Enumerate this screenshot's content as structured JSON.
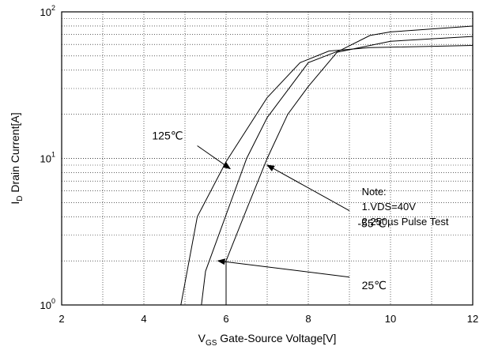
{
  "chart_data": {
    "type": "line",
    "title": "",
    "xlabel": {
      "main": "V",
      "sub": "GS",
      "rest": " Gate-Source Voltage[V]"
    },
    "ylabel": {
      "main": "I",
      "sub": "D",
      "rest": " Drain Current[A]"
    },
    "xlim": [
      2,
      12
    ],
    "ylim": [
      1,
      100
    ],
    "yscale": "log",
    "grid": "dotted",
    "x_ticks": [
      2,
      4,
      6,
      8,
      10,
      12
    ],
    "y_ticks": [
      {
        "value": 1,
        "base": "10",
        "exp": "0"
      },
      {
        "value": 10,
        "base": "10",
        "exp": "1"
      },
      {
        "value": 100,
        "base": "10",
        "exp": "2"
      }
    ],
    "series": [
      {
        "name": "125℃",
        "points": [
          [
            4.9,
            1
          ],
          [
            5.3,
            4
          ],
          [
            6,
            9.5
          ],
          [
            7,
            26
          ],
          [
            7.8,
            45
          ],
          [
            8.5,
            54
          ],
          [
            9.5,
            57
          ],
          [
            12,
            59
          ]
        ]
      },
      {
        "name": "-55℃",
        "points": [
          [
            5.4,
            1
          ],
          [
            5.5,
            1.7
          ],
          [
            6.5,
            10
          ],
          [
            7,
            19
          ],
          [
            8,
            45
          ],
          [
            8.8,
            55
          ],
          [
            9.5,
            69
          ],
          [
            10,
            73
          ],
          [
            12,
            80
          ]
        ]
      },
      {
        "name": "25℃",
        "points": [
          [
            6,
            1
          ],
          [
            6,
            2
          ],
          [
            6.5,
            4.5
          ],
          [
            7,
            10
          ],
          [
            7.5,
            20
          ],
          [
            8,
            31
          ],
          [
            8.7,
            53
          ],
          [
            10,
            63
          ],
          [
            12,
            68
          ]
        ]
      }
    ],
    "annotations": [
      {
        "text": "125℃",
        "label_xy": [
          4.2,
          13.5
        ],
        "arrow_from": [
          5.3,
          12.2
        ],
        "arrow_to": [
          6.1,
          8.5
        ]
      },
      {
        "text": "-55℃",
        "label_xy": [
          9.2,
          3.4
        ],
        "arrow_from": [
          9.0,
          4.4
        ],
        "arrow_to": [
          7.0,
          9.0
        ]
      },
      {
        "text": "25℃",
        "label_xy": [
          9.3,
          1.28
        ],
        "arrow_from": [
          9.0,
          1.55
        ],
        "arrow_to": [
          5.8,
          2.0
        ]
      }
    ],
    "note": [
      "Note:",
      "1.VDS=40V",
      "2.250µs Pulse Test"
    ]
  }
}
